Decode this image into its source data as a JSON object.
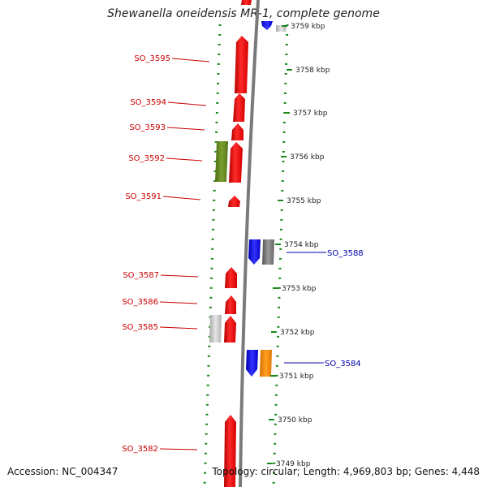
{
  "title": "Shewanella oneidensis MR-1, complete genome",
  "footer": {
    "accession": "Accession: NC_004347",
    "summary": "Topology: circular; Length: 4,969,803 bp; Genes: 4,448"
  },
  "axis_ticks": [
    {
      "kbp": 3759,
      "label": "3759 kbp"
    },
    {
      "kbp": 3758,
      "label": "3758 kbp"
    },
    {
      "kbp": 3757,
      "label": "3757 kbp"
    },
    {
      "kbp": 3756,
      "label": "3756 kbp"
    },
    {
      "kbp": 3755,
      "label": "3755 kbp"
    },
    {
      "kbp": 3754,
      "label": "3754 kbp"
    },
    {
      "kbp": 3753,
      "label": "3753 kbp"
    },
    {
      "kbp": 3752,
      "label": "3752 kbp"
    },
    {
      "kbp": 3751,
      "label": "3751 kbp"
    },
    {
      "kbp": 3750,
      "label": "3750 kbp"
    },
    {
      "kbp": 3749,
      "label": "3749 kbp"
    }
  ],
  "gene_labels": {
    "left_color": "#cc0000",
    "right_color": "#0000aa",
    "left": [
      "SO_3595",
      "SO_3594",
      "SO_3593",
      "SO_3592",
      "SO_3591",
      "SO_3587",
      "SO_3586",
      "SO_3585",
      "SO_3582"
    ],
    "right": [
      "SO_3588",
      "SO_3584"
    ]
  },
  "colors": {
    "red": "#ff1a1a",
    "green": "#6b8e23",
    "blue": "#1a1aff",
    "grey": "#808080",
    "light_grey": "#c8c8c8",
    "orange": "#ff8c00",
    "dotted_ring": "#1a8a1a",
    "backbone": "#888888"
  }
}
